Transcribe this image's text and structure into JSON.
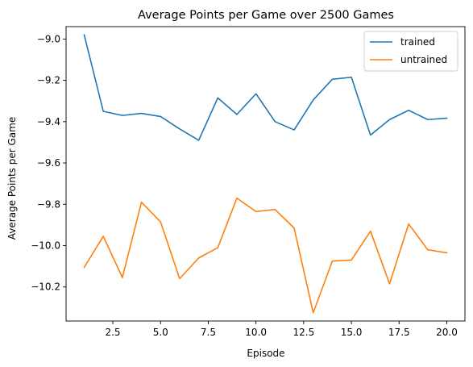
{
  "chart_data": {
    "type": "line",
    "title": "Average Points per Game over 2500 Games",
    "xlabel": "Episode",
    "ylabel": "Average Points per Game",
    "x": [
      1,
      2,
      3,
      4,
      5,
      6,
      7,
      8,
      9,
      10,
      11,
      12,
      13,
      14,
      15,
      16,
      17,
      18,
      19,
      20
    ],
    "xlim": [
      0.05,
      20.95
    ],
    "ylim": [
      -10.365,
      -8.94
    ],
    "xticks": [
      2.5,
      5.0,
      7.5,
      10.0,
      12.5,
      15.0,
      17.5,
      20.0
    ],
    "xtick_labels": [
      "2.5",
      "5.0",
      "7.5",
      "10.0",
      "12.5",
      "15.0",
      "17.5",
      "20.0"
    ],
    "yticks": [
      -9.0,
      -9.2,
      -9.4,
      -9.6,
      -9.8,
      -10.0,
      -10.2
    ],
    "ytick_labels": [
      "−9.0",
      "−9.2",
      "−9.4",
      "−9.6",
      "−9.8",
      "−10.0",
      "−10.2"
    ],
    "grid": false,
    "legend_position": "upper-right",
    "series": [
      {
        "name": "trained",
        "color": "#1f77b4",
        "values": [
          -8.98,
          -9.35,
          -9.37,
          -9.36,
          -9.375,
          -9.435,
          -9.49,
          -9.285,
          -9.365,
          -9.265,
          -9.4,
          -9.44,
          -9.295,
          -9.195,
          -9.185,
          -9.465,
          -9.39,
          -9.345,
          -9.39,
          -9.383
        ]
      },
      {
        "name": "untrained",
        "color": "#ff7f0e",
        "values": [
          -10.105,
          -9.955,
          -10.155,
          -9.79,
          -9.885,
          -10.16,
          -10.06,
          -10.01,
          -9.77,
          -9.835,
          -9.825,
          -9.915,
          -10.325,
          -10.075,
          -10.07,
          -9.93,
          -10.185,
          -9.895,
          -10.02,
          -10.035
        ]
      }
    ]
  }
}
